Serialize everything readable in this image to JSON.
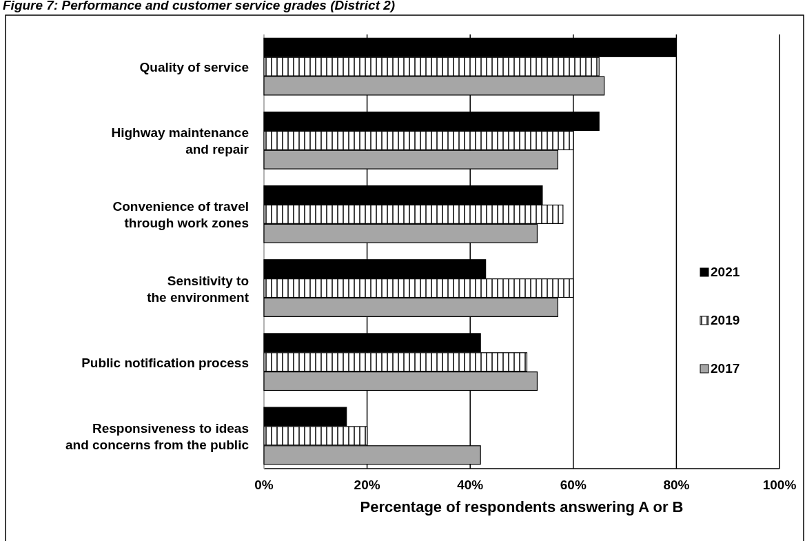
{
  "chart_data": {
    "type": "bar",
    "orientation": "horizontal",
    "title": "Figure 7: Performance and customer service grades (District 2)",
    "xlabel": "Percentage of respondents answering A or B",
    "categories": [
      "Quality of service",
      "Highway maintenance\nand repair",
      "Convenience of travel\nthrough work zones",
      "Sensitivity to\nthe environment",
      "Public notification process",
      "Responsiveness to ideas\nand concerns from the public"
    ],
    "series": [
      {
        "name": "2021",
        "color": "#000000",
        "values": [
          80,
          65,
          54,
          43,
          42,
          16
        ]
      },
      {
        "name": "2019",
        "color": "#ffffff",
        "values": [
          65,
          60,
          58,
          60,
          51,
          20
        ]
      },
      {
        "name": "2017",
        "color": "#a6a6a6",
        "values": [
          66,
          57,
          53,
          57,
          53,
          42
        ]
      }
    ],
    "xlim": [
      0,
      100
    ],
    "xticks": [
      {
        "value": 0,
        "label": "0%"
      },
      {
        "value": 20,
        "label": "20%"
      },
      {
        "value": 40,
        "label": "40%"
      },
      {
        "value": 60,
        "label": "60%"
      },
      {
        "value": 80,
        "label": "80%"
      },
      {
        "value": 100,
        "label": "100%"
      }
    ],
    "grid": "x",
    "legend": "right"
  }
}
